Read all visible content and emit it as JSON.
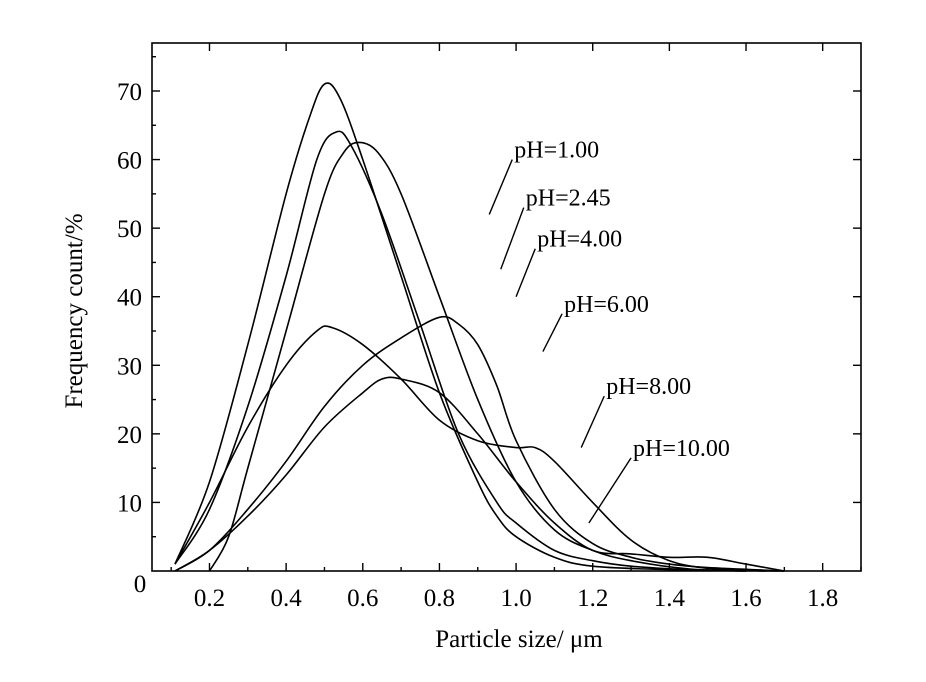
{
  "chart_data": {
    "type": "line",
    "title": "",
    "xlabel": "Particle size/ μm",
    "ylabel": "Frequency count/%",
    "xlim": [
      0.05,
      1.9
    ],
    "ylim": [
      0,
      77
    ],
    "origin_label": "0",
    "x_ticks": [
      0.2,
      0.4,
      0.6,
      0.8,
      1.0,
      1.2,
      1.4,
      1.6,
      1.8
    ],
    "x_tick_labels": [
      "0.2",
      "0.4",
      "0.6",
      "0.8",
      "1.0",
      "1.2",
      "1.4",
      "1.6",
      "1.8"
    ],
    "y_ticks": [
      10,
      20,
      30,
      40,
      50,
      60,
      70
    ],
    "y_tick_labels": [
      "10",
      "20",
      "30",
      "40",
      "50",
      "60",
      "70"
    ],
    "grid": false,
    "legend": "none (inline labels with leader lines)",
    "series": [
      {
        "name": "pH=1.00",
        "label_leader_to": [
          0.93,
          52
        ],
        "label_anchor": [
          0.99,
          60
        ],
        "points": [
          [
            0.11,
            1
          ],
          [
            0.2,
            13
          ],
          [
            0.3,
            33
          ],
          [
            0.4,
            55
          ],
          [
            0.46,
            66
          ],
          [
            0.5,
            71
          ],
          [
            0.54,
            69
          ],
          [
            0.6,
            60
          ],
          [
            0.7,
            43
          ],
          [
            0.8,
            26
          ],
          [
            0.9,
            13
          ],
          [
            0.95,
            8
          ],
          [
            1.0,
            5
          ],
          [
            1.1,
            2
          ],
          [
            1.2,
            0.7
          ],
          [
            1.4,
            0.2
          ],
          [
            1.7,
            0
          ]
        ]
      },
      {
        "name": "pH=2.45",
        "label_leader_to": [
          0.96,
          44
        ],
        "label_anchor": [
          1.02,
          53
        ],
        "points": [
          [
            0.11,
            1
          ],
          [
            0.2,
            9
          ],
          [
            0.3,
            24
          ],
          [
            0.4,
            43
          ],
          [
            0.48,
            60
          ],
          [
            0.53,
            64
          ],
          [
            0.57,
            62
          ],
          [
            0.65,
            52
          ],
          [
            0.75,
            36
          ],
          [
            0.85,
            20
          ],
          [
            0.95,
            10
          ],
          [
            1.0,
            7
          ],
          [
            1.1,
            3
          ],
          [
            1.2,
            1.5
          ],
          [
            1.3,
            0.7
          ],
          [
            1.45,
            0.2
          ],
          [
            1.6,
            0
          ]
        ]
      },
      {
        "name": "pH=4.00",
        "label_leader_to": [
          1.0,
          40
        ],
        "label_anchor": [
          1.05,
          47
        ],
        "points": [
          [
            0.2,
            0
          ],
          [
            0.25,
            5
          ],
          [
            0.3,
            15
          ],
          [
            0.4,
            35
          ],
          [
            0.5,
            55
          ],
          [
            0.55,
            61
          ],
          [
            0.59,
            62.5
          ],
          [
            0.64,
            61
          ],
          [
            0.7,
            55
          ],
          [
            0.8,
            40
          ],
          [
            0.9,
            25
          ],
          [
            1.0,
            13
          ],
          [
            1.1,
            6
          ],
          [
            1.2,
            3
          ],
          [
            1.3,
            1.5
          ],
          [
            1.45,
            0.3
          ],
          [
            1.6,
            0
          ]
        ]
      },
      {
        "name": "pH=6.00",
        "label_leader_to": [
          1.07,
          32
        ],
        "label_anchor": [
          1.12,
          37.5
        ],
        "points": [
          [
            0.11,
            0
          ],
          [
            0.2,
            3
          ],
          [
            0.3,
            9
          ],
          [
            0.4,
            16
          ],
          [
            0.5,
            24
          ],
          [
            0.6,
            30
          ],
          [
            0.7,
            34
          ],
          [
            0.8,
            37
          ],
          [
            0.85,
            36
          ],
          [
            0.9,
            33
          ],
          [
            0.95,
            27
          ],
          [
            1.0,
            19
          ],
          [
            1.1,
            9
          ],
          [
            1.2,
            4
          ],
          [
            1.3,
            2
          ],
          [
            1.4,
            1
          ],
          [
            1.5,
            0.5
          ],
          [
            1.7,
            0
          ]
        ]
      },
      {
        "name": "pH=8.00",
        "label_leader_to": [
          1.17,
          18
        ],
        "label_anchor": [
          1.23,
          25.5
        ],
        "points": [
          [
            0.11,
            1
          ],
          [
            0.2,
            10
          ],
          [
            0.3,
            21
          ],
          [
            0.4,
            30
          ],
          [
            0.48,
            35
          ],
          [
            0.52,
            35.5
          ],
          [
            0.6,
            33
          ],
          [
            0.7,
            28
          ],
          [
            0.8,
            22
          ],
          [
            0.9,
            19
          ],
          [
            1.0,
            18
          ],
          [
            1.05,
            18
          ],
          [
            1.1,
            16
          ],
          [
            1.2,
            10
          ],
          [
            1.3,
            4.5
          ],
          [
            1.4,
            1.5
          ],
          [
            1.5,
            0.4
          ],
          [
            1.65,
            0
          ]
        ]
      },
      {
        "name": "pH=10.00",
        "label_leader_to": [
          1.19,
          7
        ],
        "label_anchor": [
          1.3,
          16.5
        ],
        "points": [
          [
            0.11,
            0
          ],
          [
            0.2,
            3
          ],
          [
            0.3,
            8
          ],
          [
            0.4,
            14
          ],
          [
            0.5,
            21
          ],
          [
            0.6,
            26
          ],
          [
            0.65,
            28
          ],
          [
            0.7,
            28
          ],
          [
            0.8,
            26
          ],
          [
            0.9,
            20
          ],
          [
            1.0,
            13
          ],
          [
            1.1,
            7
          ],
          [
            1.2,
            3
          ],
          [
            1.3,
            2.5
          ],
          [
            1.4,
            2
          ],
          [
            1.5,
            2
          ],
          [
            1.6,
            1
          ],
          [
            1.7,
            0
          ]
        ]
      }
    ]
  }
}
